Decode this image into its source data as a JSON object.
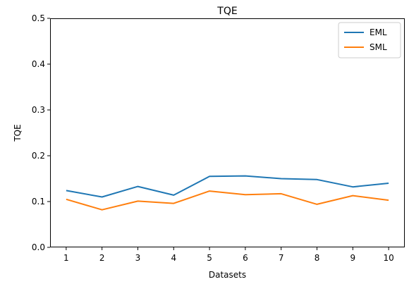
{
  "chart_data": {
    "type": "line",
    "title": "TQE",
    "xlabel": "Datasets",
    "ylabel": "TQE",
    "x": [
      1,
      2,
      3,
      4,
      5,
      6,
      7,
      8,
      9,
      10
    ],
    "x_tick_labels": [
      "1",
      "2",
      "3",
      "4",
      "5",
      "6",
      "7",
      "8",
      "9",
      "10"
    ],
    "y_tick_labels": [
      "0.0",
      "0.1",
      "0.2",
      "0.3",
      "0.4",
      "0.5"
    ],
    "y_ticks": [
      0.0,
      0.1,
      0.2,
      0.3,
      0.4,
      0.5
    ],
    "xlim": [
      0.55,
      10.45
    ],
    "ylim": [
      0,
      0.5
    ],
    "grid": false,
    "legend_position": "top-right",
    "series": [
      {
        "name": "EML",
        "color": "#1f77b4",
        "values": [
          0.124,
          0.11,
          0.133,
          0.114,
          0.155,
          0.156,
          0.15,
          0.148,
          0.132,
          0.14
        ]
      },
      {
        "name": "SML",
        "color": "#ff7f0e",
        "values": [
          0.105,
          0.082,
          0.101,
          0.096,
          0.123,
          0.115,
          0.117,
          0.094,
          0.113,
          0.103
        ]
      }
    ]
  }
}
